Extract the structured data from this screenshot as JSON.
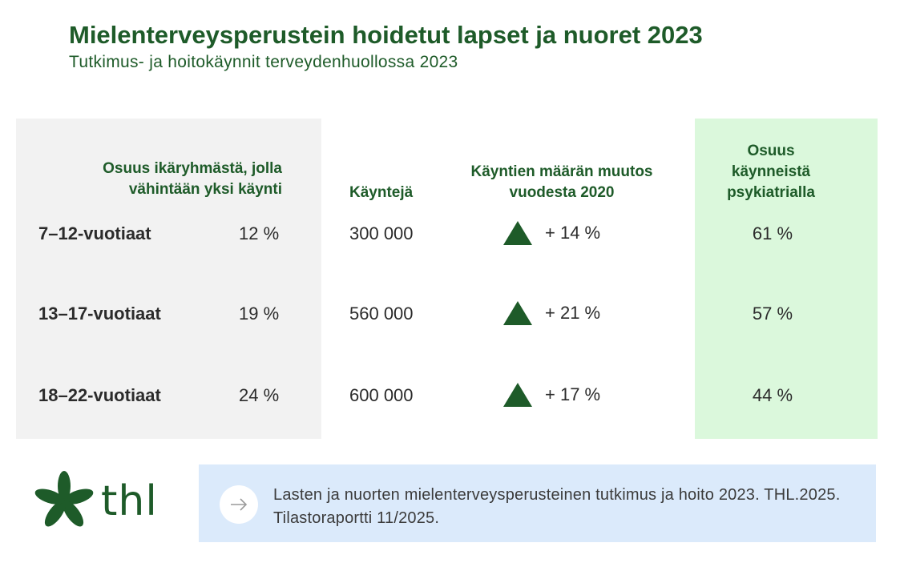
{
  "title": "Mielenterveysperustein hoidetut lapset ja nuoret 2023",
  "subtitle": "Tutkimus-  ja hoitokäynnit terveydenhuollossa 2023",
  "headers": {
    "share": "Osuus ikäryhmästä, jolla vähintään yksi käynti",
    "visits": "Käyntejä",
    "change": "Käyntien määrän muutos vuodesta 2020",
    "psych": "Osuus käynneistä psykiatrialla"
  },
  "rows": [
    {
      "group": "7–12-vuotiaat",
      "share": "12 %",
      "visits": "300 000",
      "change": "+ 14 %",
      "psych": "61 %"
    },
    {
      "group": "13–17-vuotiaat",
      "share": "19 %",
      "visits": "560 000",
      "change": "+ 21 %",
      "psych": "57 %"
    },
    {
      "group": "18–22-vuotiaat",
      "share": "24 %",
      "visits": "600 000",
      "change": "+ 17 %",
      "psych": "44 %"
    }
  ],
  "logo_text": "thl",
  "source": "Lasten ja nuorten mielenterveysperusteinen tutkimus ja hoito 2023. THL.2025. Tilastoraportti 11/2025.",
  "colors": {
    "brand_green": "#1e5b29",
    "grey_panel": "#f2f2f2",
    "green_panel": "#dbf8dc",
    "source_panel": "#dbeafb"
  },
  "icons": {
    "increase": "triangle-up-icon",
    "source_link": "arrow-right-icon",
    "logo": "thl-flower-icon"
  },
  "chart_data": {
    "type": "table",
    "title": "Mielenterveysperustein hoidetut lapset ja nuoret 2023",
    "subtitle": "Tutkimus-  ja hoitokäynnit terveydenhuollossa 2023",
    "columns": [
      "",
      "Osuus ikäryhmästä, jolla vähintään yksi käynti",
      "Käyntejä",
      "Käyntien määrän muutos vuodesta 2020",
      "Osuus käynneistä psykiatrialla"
    ],
    "categories": [
      "7–12-vuotiaat",
      "13–17-vuotiaat",
      "18–22-vuotiaat"
    ],
    "series": [
      {
        "name": "Osuus ikäryhmästä, jolla vähintään yksi käynti",
        "values": [
          12,
          19,
          24
        ],
        "unit": "%"
      },
      {
        "name": "Käyntejä",
        "values": [
          300000,
          560000,
          600000
        ]
      },
      {
        "name": "Käyntien määrän muutos vuodesta 2020",
        "values": [
          14,
          21,
          17
        ],
        "unit": "%"
      },
      {
        "name": "Osuus käynneistä psykiatrialla",
        "values": [
          61,
          57,
          44
        ],
        "unit": "%"
      }
    ]
  }
}
